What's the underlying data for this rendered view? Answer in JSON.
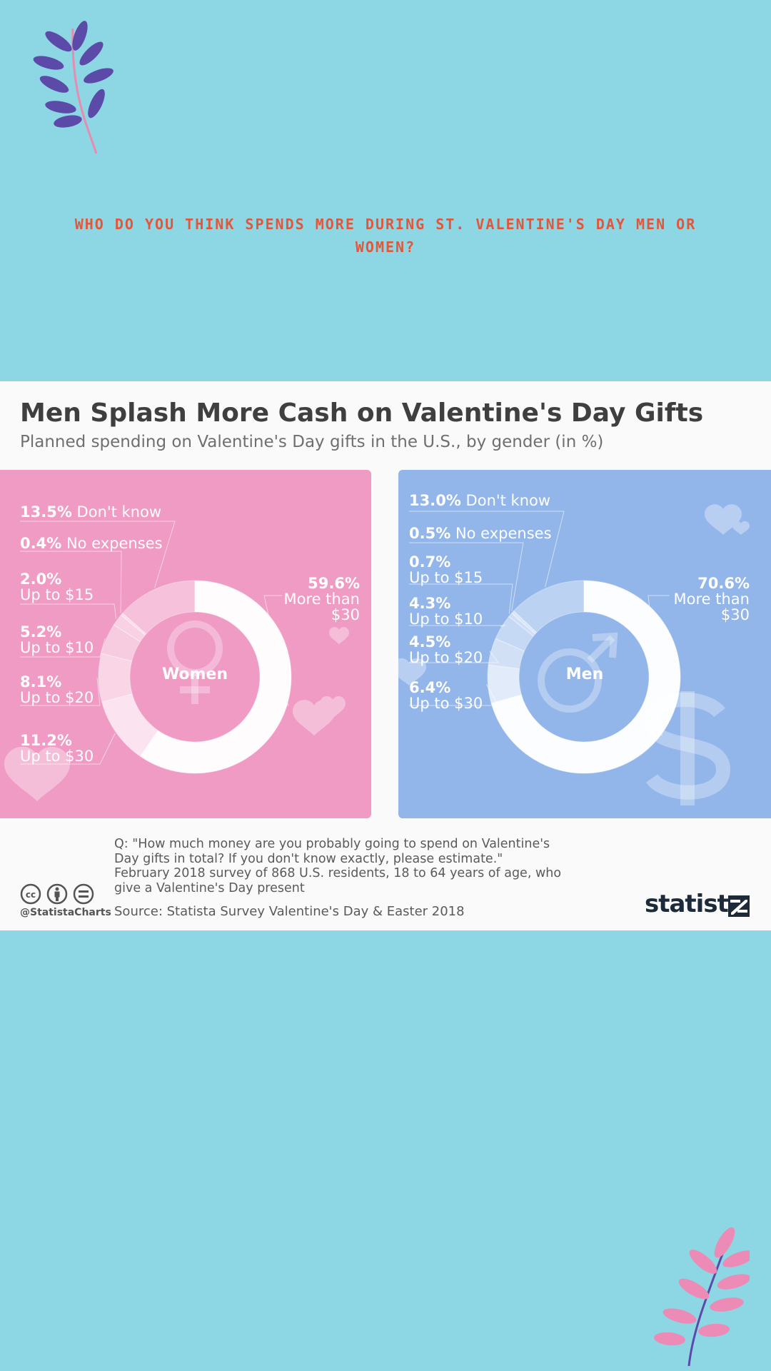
{
  "question": "WHO DO YOU THINK SPENDS MORE DURING ST. VALENTINE'S DAY MEN OR WOMEN?",
  "decoration": {
    "top_icon": "leaf-branch-icon",
    "bottom_icon": "leaf-branch-icon"
  },
  "colors": {
    "background": "#8dd6e4",
    "question": "#e0573b",
    "women_panel": "#f09bc4",
    "men_panel": "#93b6ea",
    "ring": "#ffffff"
  },
  "chart_data": [
    {
      "type": "pie",
      "title": "Men Splash More Cash on Valentine's Day Gifts",
      "subtitle": "Planned spending on Valentine's Day gifts in the U.S., by gender (in %)",
      "center_label": "Women",
      "series": [
        {
          "name": "More than $30",
          "value": 59.6,
          "pct": "59.6%",
          "label": "More than $30"
        },
        {
          "name": "Up to $30",
          "value": 11.2,
          "pct": "11.2%",
          "label": "Up to $30"
        },
        {
          "name": "Up to $20",
          "value": 8.1,
          "pct": "8.1%",
          "label": "Up to $20"
        },
        {
          "name": "Up to $10",
          "value": 5.2,
          "pct": "5.2%",
          "label": "Up to $10"
        },
        {
          "name": "Up to $15",
          "value": 2.0,
          "pct": "2.0%",
          "label": "Up to $15"
        },
        {
          "name": "No expenses",
          "value": 0.4,
          "pct": "0.4%",
          "label": "No expenses"
        },
        {
          "name": "Don't know",
          "value": 13.5,
          "pct": "13.5%",
          "label": "Don't know"
        }
      ]
    },
    {
      "type": "pie",
      "title": "",
      "center_label": "Men",
      "series": [
        {
          "name": "More than $30",
          "value": 70.6,
          "pct": "70.6%",
          "label": "More than $30"
        },
        {
          "name": "Up to $30",
          "value": 6.4,
          "pct": "6.4%",
          "label": "Up to $30"
        },
        {
          "name": "Up to $20",
          "value": 4.5,
          "pct": "4.5%",
          "label": "Up to $20"
        },
        {
          "name": "Up to $10",
          "value": 4.3,
          "pct": "4.3%",
          "label": "Up to $10"
        },
        {
          "name": "Up to $15",
          "value": 0.7,
          "pct": "0.7%",
          "label": "Up to $15"
        },
        {
          "name": "No expenses",
          "value": 0.5,
          "pct": "0.5%",
          "label": "No expenses"
        },
        {
          "name": "Don't know",
          "value": 13.0,
          "pct": "13.0%",
          "label": "Don't know"
        }
      ]
    }
  ],
  "footer": {
    "question": "Q: \"How much money are you probably going to spend on Valentine's Day gifts in total? If you don't know exactly, please estimate.\"",
    "survey": "February 2018 survey of 868 U.S. residents, 18 to 64 years of age, who give a Valentine's Day present",
    "source": "Source: Statista Survey Valentine's Day & Easter 2018",
    "handle": "@StatistaCharts",
    "brand": "statista",
    "license_icons": [
      "cc-icon",
      "by-icon",
      "nd-icon"
    ]
  }
}
